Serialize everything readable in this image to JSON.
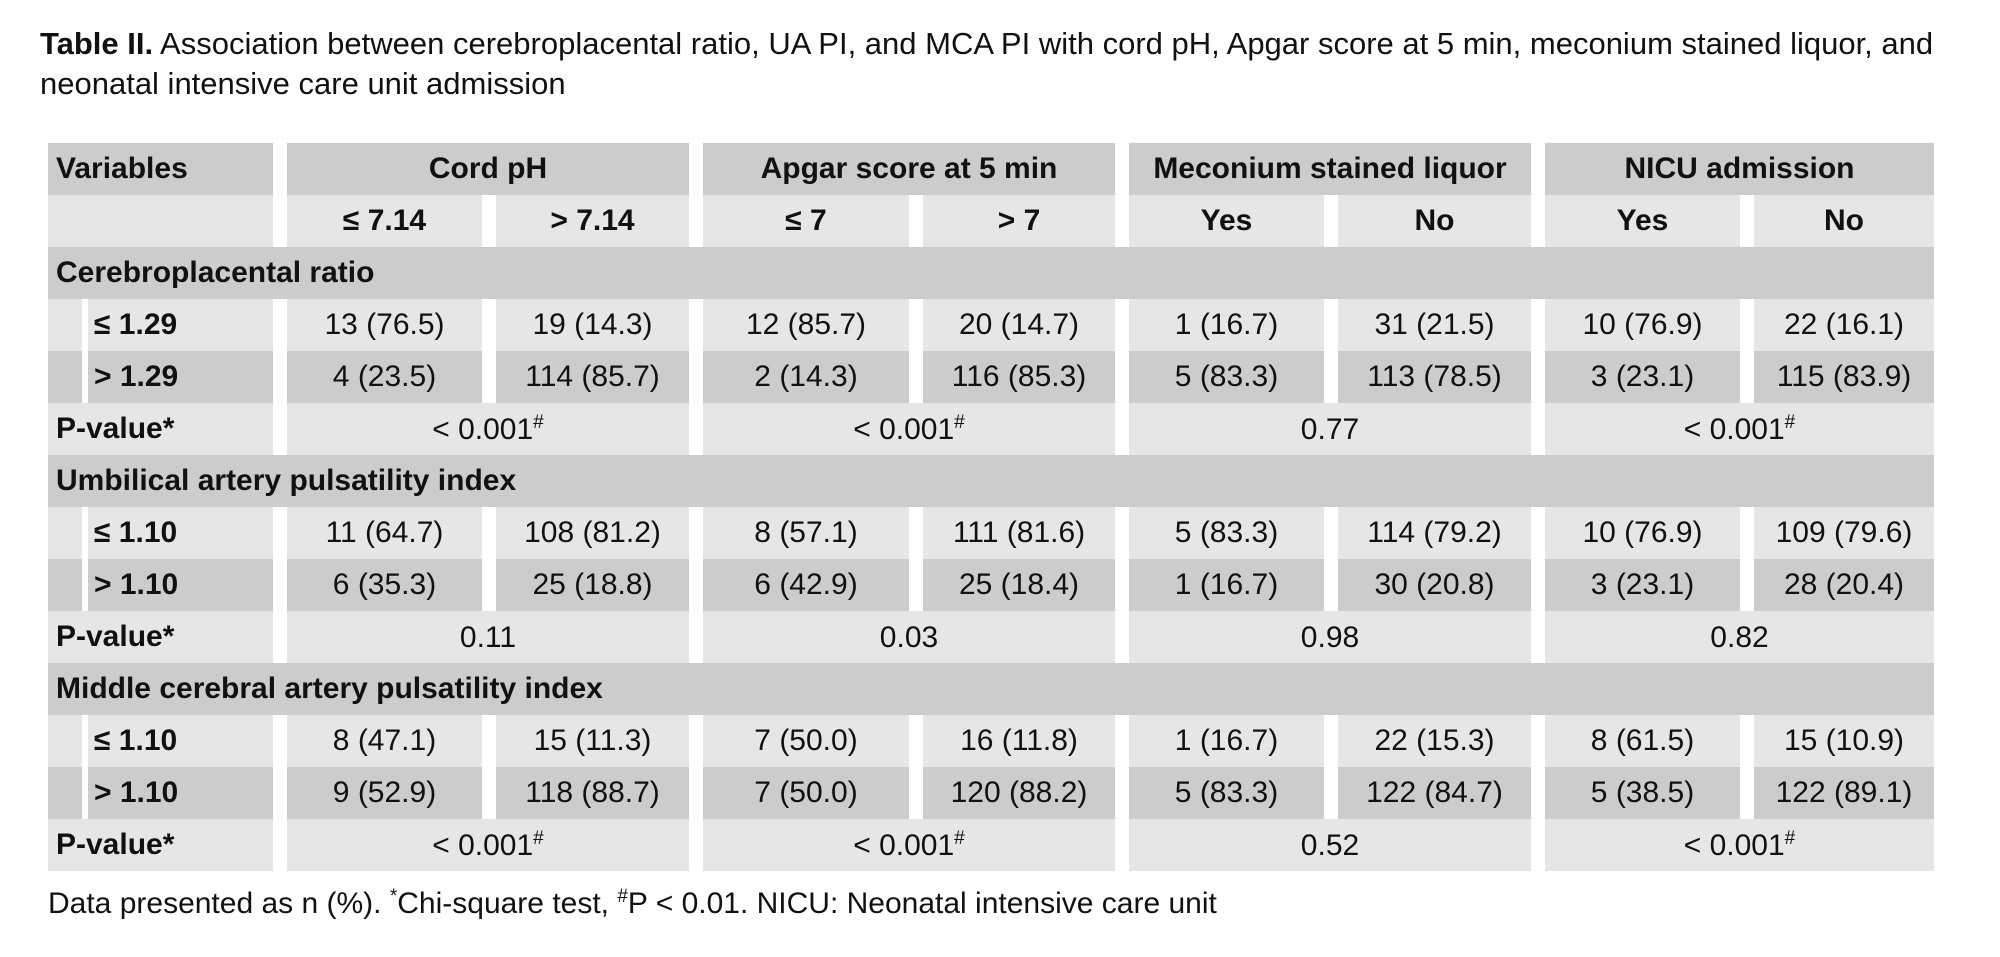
{
  "caption": {
    "label": "Table II.",
    "text": "Association between cerebroplacental ratio, UA PI, and MCA PI with cord pH, Apgar score at 5 min, meconium stained liquor, and neonatal intensive care unit admission"
  },
  "header": {
    "variables": "Variables",
    "groups": [
      "Cord pH",
      "Apgar score at 5 min",
      "Meconium stained liquor",
      "NICU admission"
    ],
    "subheaders": [
      "≤ 7.14",
      "> 7.14",
      "≤ 7",
      "> 7",
      "Yes",
      "No",
      "Yes",
      "No"
    ]
  },
  "sections": [
    {
      "title": "Cerebroplacental ratio",
      "rows": [
        {
          "label": "≤ 1.29",
          "values": [
            "13 (76.5)",
            "19 (14.3)",
            "12 (85.7)",
            "20 (14.7)",
            "1 (16.7)",
            "31 (21.5)",
            "10 (76.9)",
            "22 (16.1)"
          ]
        },
        {
          "label": "> 1.29",
          "values": [
            "4 (23.5)",
            "114 (85.7)",
            "2 (14.3)",
            "116 (85.3)",
            "5 (83.3)",
            "113 (78.5)",
            "3 (23.1)",
            "115 (83.9)"
          ]
        }
      ],
      "pvalue_label": "P-value*",
      "pvalues": [
        "< 0.001",
        "< 0.001",
        "0.77",
        "< 0.001"
      ],
      "pmarks": [
        "#",
        "#",
        "",
        "#"
      ]
    },
    {
      "title": "Umbilical artery pulsatility index",
      "rows": [
        {
          "label": "≤ 1.10",
          "values": [
            "11 (64.7)",
            "108 (81.2)",
            "8 (57.1)",
            "111 (81.6)",
            "5 (83.3)",
            "114 (79.2)",
            "10 (76.9)",
            "109 (79.6)"
          ]
        },
        {
          "label": "> 1.10",
          "values": [
            "6 (35.3)",
            "25 (18.8)",
            "6 (42.9)",
            "25 (18.4)",
            "1 (16.7)",
            "30 (20.8)",
            "3 (23.1)",
            "28 (20.4)"
          ]
        }
      ],
      "pvalue_label": "P-value*",
      "pvalues": [
        "0.11",
        "0.03",
        "0.98",
        "0.82"
      ],
      "pmarks": [
        "",
        "",
        "",
        ""
      ]
    },
    {
      "title": "Middle cerebral artery pulsatility index",
      "rows": [
        {
          "label": "≤ 1.10",
          "values": [
            "8 (47.1)",
            "15 (11.3)",
            "7 (50.0)",
            "16 (11.8)",
            "1 (16.7)",
            "22 (15.3)",
            "8 (61.5)",
            "15 (10.9)"
          ]
        },
        {
          "label": "> 1.10",
          "values": [
            "9 (52.9)",
            "118 (88.7)",
            "7 (50.0)",
            "120 (88.2)",
            "5 (83.3)",
            "122 (84.7)",
            "5 (38.5)",
            "122 (89.1)"
          ]
        }
      ],
      "pvalue_label": "P-value*",
      "pvalues": [
        "< 0.001",
        "< 0.001",
        "0.52",
        "< 0.001"
      ],
      "pmarks": [
        "#",
        "#",
        "",
        "#"
      ]
    }
  ],
  "footnote": {
    "text1": "Data presented as n (%). ",
    "star": "*",
    "text2": "Chi-square test, ",
    "hash": "#",
    "text3": "P < 0.01. NICU: Neonatal intensive care unit"
  }
}
